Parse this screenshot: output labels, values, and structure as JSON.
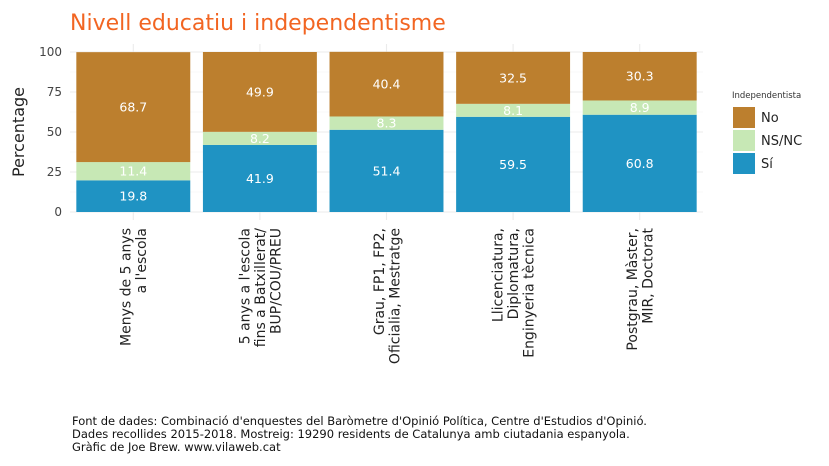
{
  "chart_data": {
    "type": "bar",
    "stacked": true,
    "title": "Nivell educatiu i independentisme",
    "ylabel": "Percentage",
    "xlabel": "",
    "ylim": [
      0,
      100
    ],
    "yticks": [
      0,
      25,
      50,
      75,
      100
    ],
    "grid": true,
    "legend_position": "right",
    "legend_title": "Independentista",
    "categories": [
      [
        "Menys de 5 anys",
        "a l'escola"
      ],
      [
        "5 anys a l'escola",
        "fins a Batxillerat/",
        "BUP/COU/PREU"
      ],
      [
        "Grau, FP1, FP2,",
        "Oficialia, Mestratge"
      ],
      [
        "Llicenciatura,",
        "Diplomatura,",
        "Enginyeria tècnica"
      ],
      [
        "Postgrau, Màster,",
        "MIR, Doctorat"
      ]
    ],
    "series": [
      {
        "name": "Sí",
        "color": "#1f93c3",
        "values": [
          19.8,
          41.9,
          51.4,
          59.5,
          60.8
        ]
      },
      {
        "name": "NS/NC",
        "color": "#c7e8b5",
        "values": [
          11.4,
          8.2,
          8.3,
          8.1,
          8.9
        ]
      },
      {
        "name": "No",
        "color": "#bc7f2e",
        "values": [
          68.7,
          49.9,
          40.4,
          32.5,
          30.3
        ]
      }
    ],
    "legend_order": [
      "No",
      "NS/NC",
      "Sí"
    ]
  },
  "caption": [
    "Font de dades: Combinació d'enquestes del Baròmetre d'Opinió Política, Centre d'Estudios d'Opinió.",
    "Dades recollides 2015-2018. Mostreig: 19290 residents de Catalunya amb ciutadania espanyola.",
    "Gràfic de Joe Brew. www.vilaweb.cat"
  ]
}
